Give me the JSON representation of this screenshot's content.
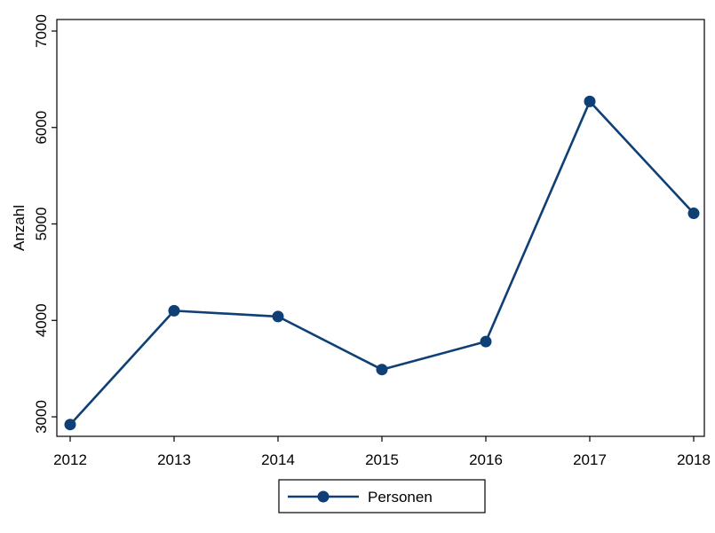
{
  "chart_data": {
    "type": "line",
    "title": "",
    "xlabel": "",
    "ylabel": "Anzahl",
    "x": [
      "2012",
      "2013",
      "2014",
      "2015",
      "2016",
      "2017",
      "2018"
    ],
    "series": [
      {
        "name": "Personen",
        "values": [
          2920,
          4100,
          4040,
          3490,
          3780,
          6270,
          5110
        ],
        "color": "#0e3f75",
        "marker": "circle"
      }
    ],
    "ylim": [
      2900,
      7000
    ],
    "yticks": [
      "3000",
      "4000",
      "5000",
      "6000",
      "7000"
    ],
    "grid": false,
    "legend": "bottom-center"
  }
}
